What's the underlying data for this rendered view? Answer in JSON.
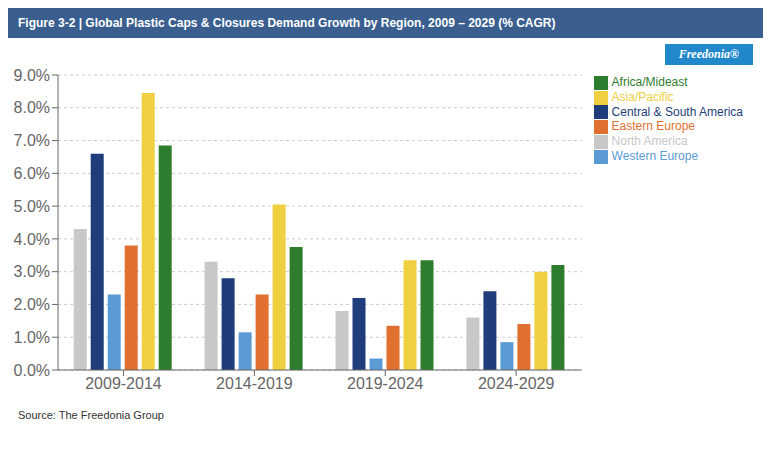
{
  "chart_data": {
    "type": "bar",
    "title": "Figure 3-2 | Global Plastic Caps & Closures Demand Growth by Region, 2009 – 2029 (% CAGR)",
    "categories": [
      "2009-2014",
      "2014-2019",
      "2019-2024",
      "2024-2029"
    ],
    "series": [
      {
        "name": "North America",
        "color": "#c8c8c8",
        "values": [
          4.3,
          3.3,
          1.8,
          1.6
        ]
      },
      {
        "name": "Central & South America",
        "color": "#1f3d7a",
        "values": [
          6.6,
          2.8,
          2.2,
          2.4
        ]
      },
      {
        "name": "Western Europe",
        "color": "#5b9bd5",
        "values": [
          2.3,
          1.15,
          0.35,
          0.85
        ]
      },
      {
        "name": "Eastern Europe",
        "color": "#e07030",
        "values": [
          3.8,
          2.3,
          1.35,
          1.4
        ]
      },
      {
        "name": "Asia/Pacific",
        "color": "#f0d040",
        "values": [
          8.45,
          5.05,
          3.35,
          3.0
        ]
      },
      {
        "name": "Africa/Mideast",
        "color": "#2e7d2e",
        "values": [
          6.85,
          3.75,
          3.35,
          3.2
        ]
      }
    ],
    "ylim": [
      0.0,
      9.0
    ],
    "yticks": [
      {
        "value": 0.0,
        "label": "0.0%"
      },
      {
        "value": 1.0,
        "label": "1.0%"
      },
      {
        "value": 2.0,
        "label": "2.0%"
      },
      {
        "value": 3.0,
        "label": "3.0%"
      },
      {
        "value": 4.0,
        "label": "4.0%"
      },
      {
        "value": 5.0,
        "label": "5.0%"
      },
      {
        "value": 6.0,
        "label": "6.0%"
      },
      {
        "value": 7.0,
        "label": "7.0%"
      },
      {
        "value": 8.0,
        "label": "8.0%"
      },
      {
        "value": 9.0,
        "label": "9.0%"
      }
    ],
    "grid": "y",
    "legend": "upper right",
    "annotations": [
      "Freedonia®",
      "Source: The Freedonia Group"
    ]
  }
}
